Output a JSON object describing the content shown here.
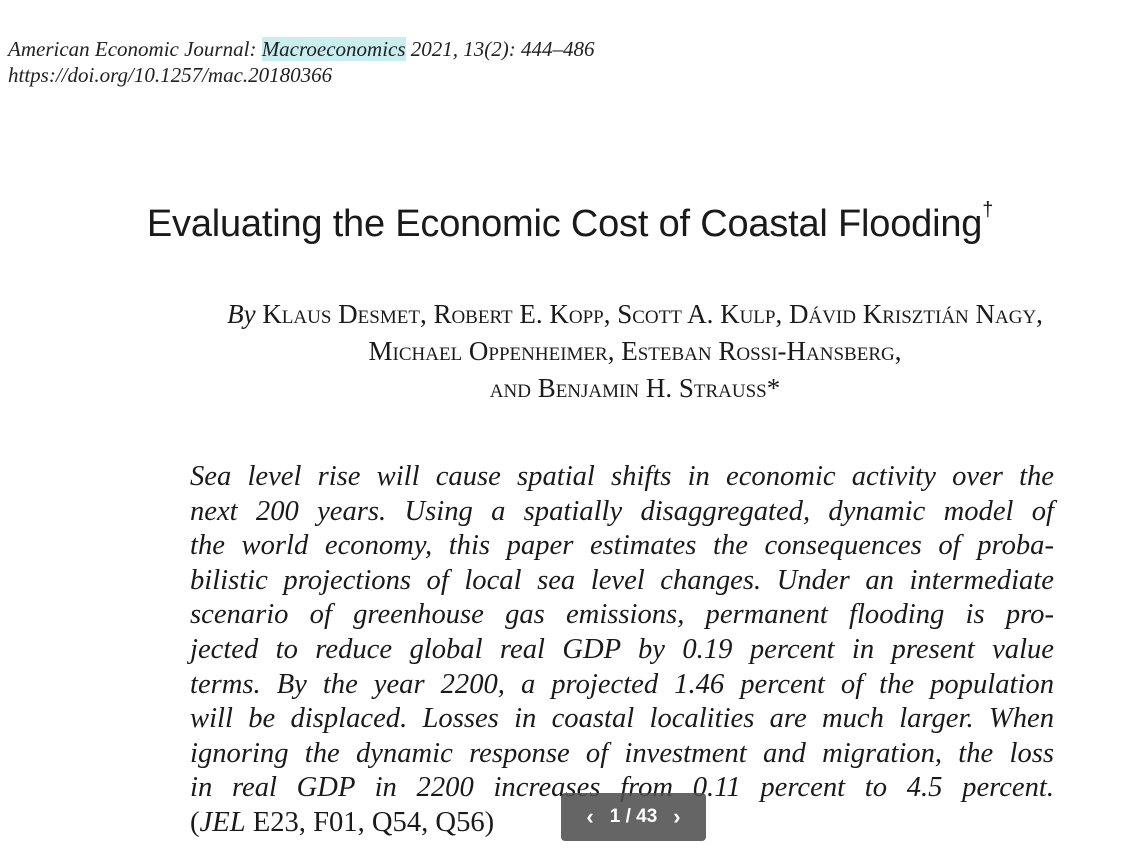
{
  "header": {
    "journal_prefix": "American Economic Journal: ",
    "journal_highlight": "Macroeconomics",
    "journal_suffix": " 2021, 13(2): 444–486",
    "doi": "https://doi.org/10.1257/mac.20180366"
  },
  "title": "Evaluating the Economic Cost of Coastal Flooding",
  "title_mark": "†",
  "authors": {
    "by": "By",
    "line1": "Klaus Desmet, Robert E. Kopp, Scott A. Kulp, Dávid Krisztián Nagy,",
    "line2": "Michael Oppenheimer, Esteban Rossi-Hansberg,",
    "line3": "and Benjamin H. Strauss*"
  },
  "abstract_lines": [
    "Sea level rise will cause spatial shifts in economic activity over the",
    "next 200 years. Using a spatially disaggregated, dynamic model of",
    "the world economy, this paper estimates the consequences of proba-",
    "bilistic projections of local sea level changes. Under an intermediate",
    "scenario of greenhouse gas emissions, permanent flooding is pro-",
    "jected to reduce global real GDP by 0.19 percent in present value",
    "terms. By the year 2200, a projected 1.46 percent of the population",
    "will be displaced. Losses in coastal localities are much larger. When",
    "ignoring the dynamic response of investment and migration, the loss",
    "in real GDP in 2200 increases from 0.11 percent to 4.5 percent."
  ],
  "jel": {
    "open": "(",
    "label": "JEL",
    "codes": " E23, F01, Q54, Q56)"
  },
  "pager": {
    "prev_icon": "‹",
    "text": "1 / 43",
    "next_icon": "›"
  },
  "colors": {
    "highlight": "#c9eef0",
    "pager_bg": "#505050"
  }
}
